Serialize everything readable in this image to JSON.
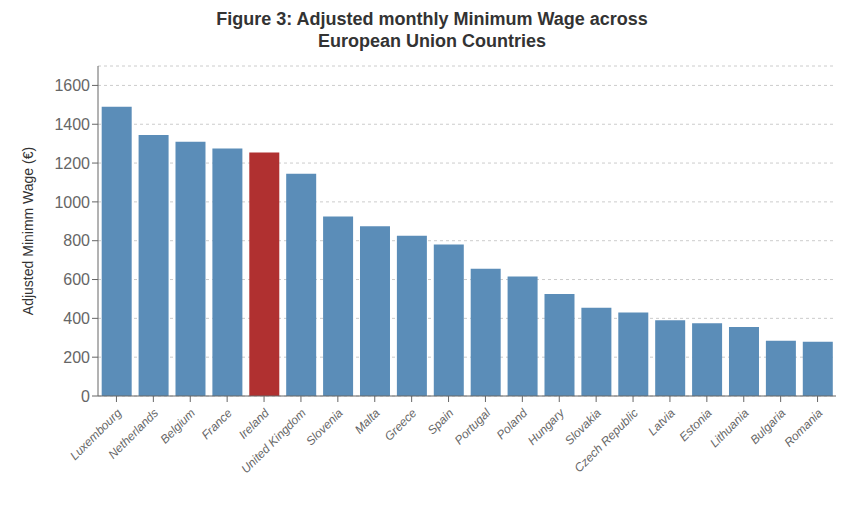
{
  "chart_data": {
    "type": "bar",
    "title": "Figure 3: Adjusted monthly Minimum Wage across\nEuropean Union Countries",
    "ylabel": "Adjusted Minimm Wage (€)",
    "categories": [
      "Luxembourg",
      "Netherlands",
      "Belgium",
      "France",
      "Ireland",
      "United Kingdom",
      "Slovenia",
      "Malta",
      "Greece",
      "Spain",
      "Portugal",
      "Poland",
      "Hungary",
      "Slovakia",
      "Czech Republic",
      "Latvia",
      "Estonia",
      "Lithuania",
      "Bulgaria",
      "Romania"
    ],
    "values": [
      1490,
      1345,
      1310,
      1275,
      1255,
      1145,
      925,
      875,
      825,
      780,
      655,
      615,
      525,
      455,
      430,
      390,
      375,
      355,
      285,
      280
    ],
    "colors": [
      "#5b8db8",
      "#5b8db8",
      "#5b8db8",
      "#5b8db8",
      "#b03030",
      "#5b8db8",
      "#5b8db8",
      "#5b8db8",
      "#5b8db8",
      "#5b8db8",
      "#5b8db8",
      "#5b8db8",
      "#5b8db8",
      "#5b8db8",
      "#5b8db8",
      "#5b8db8",
      "#5b8db8",
      "#5b8db8",
      "#5b8db8",
      "#5b8db8"
    ],
    "ylim": [
      0,
      1700
    ],
    "yticks": [
      0,
      200,
      400,
      600,
      800,
      1000,
      1200,
      1400,
      1600
    ],
    "grid": true
  }
}
